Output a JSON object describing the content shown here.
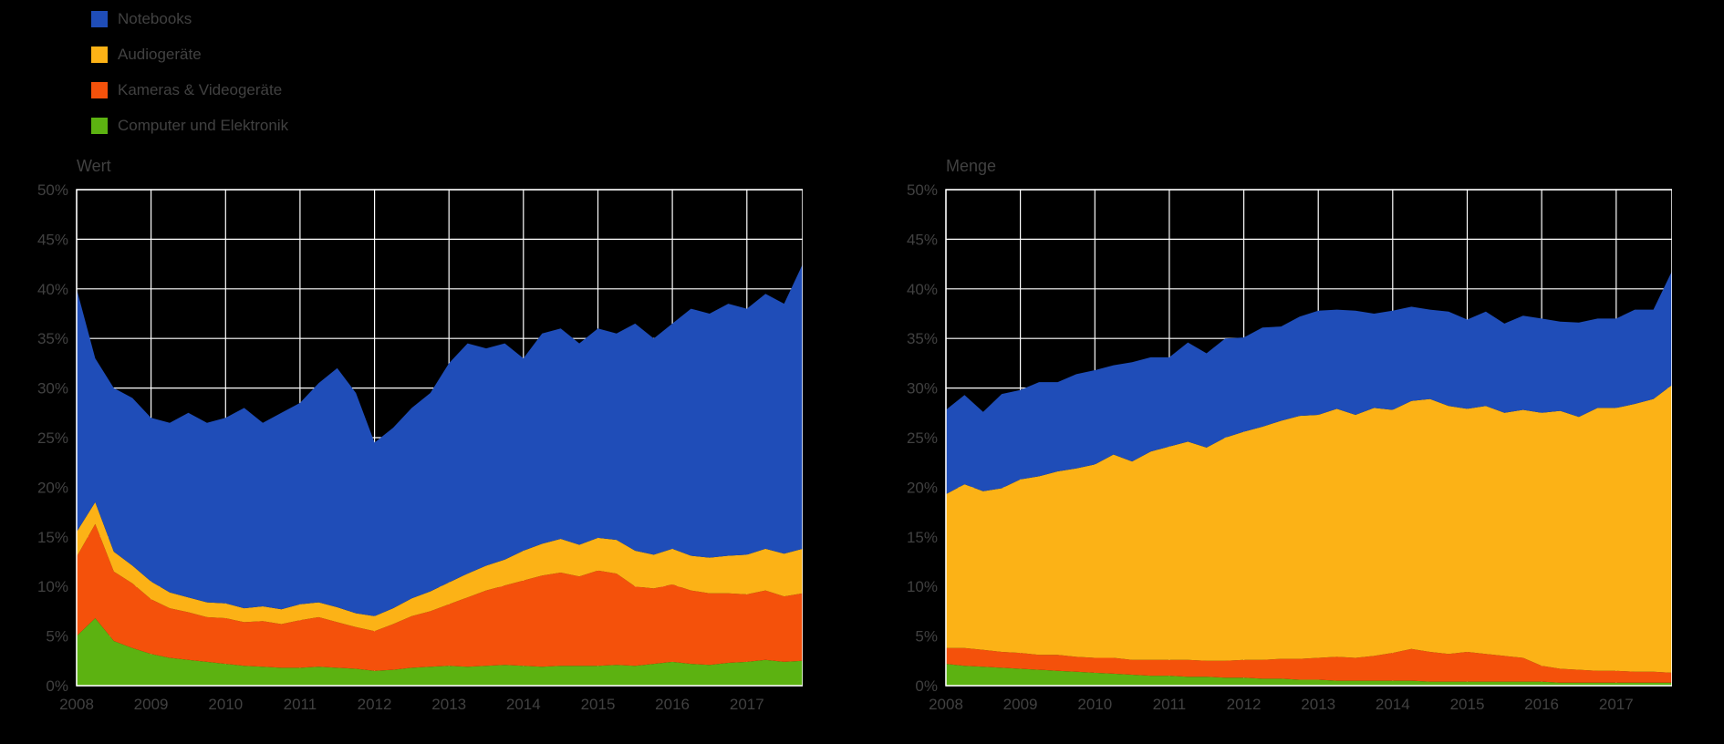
{
  "page": {
    "background_color": "#000000",
    "grid_color": "#ffffff",
    "text_color": "#414141"
  },
  "legend": {
    "items": [
      {
        "label": "Notebooks",
        "color": "#1f4db8"
      },
      {
        "label": "Audiogeräte",
        "color": "#fcb216"
      },
      {
        "label": "Kameras & Videogeräte",
        "color": "#f4510b"
      },
      {
        "label": "Computer und Elektronik",
        "color": "#5cb211"
      }
    ]
  },
  "chart_data": [
    {
      "type": "area",
      "stacked": true,
      "title": "Wert",
      "xlabel": "",
      "ylabel": "",
      "ylim": [
        0,
        50
      ],
      "grid": true,
      "grid_color": "#ffffff",
      "text_color": "#414141",
      "legend_position": "top-left",
      "y_tick_values": [
        0,
        5,
        10,
        15,
        20,
        25,
        30,
        35,
        40,
        45,
        50
      ],
      "y_tick_labels": [
        "0%",
        "5%",
        "10%",
        "15%",
        "20%",
        "25%",
        "30%",
        "35%",
        "40%",
        "45%",
        "50%"
      ],
      "x_tick_values": [
        2008,
        2009,
        2010,
        2011,
        2012,
        2013,
        2014,
        2015,
        2016,
        2017
      ],
      "x_tick_labels": [
        "2008",
        "2009",
        "2010",
        "2011",
        "2012",
        "2013",
        "2014",
        "2015",
        "2016",
        "2017"
      ],
      "x": [
        2008,
        2008.25,
        2008.5,
        2008.75,
        2009,
        2009.25,
        2009.5,
        2009.75,
        2010,
        2010.25,
        2010.5,
        2010.75,
        2011,
        2011.25,
        2011.5,
        2011.75,
        2012,
        2012.25,
        2012.5,
        2012.75,
        2013,
        2013.25,
        2013.5,
        2013.75,
        2014,
        2014.25,
        2014.5,
        2014.75,
        2015,
        2015.25,
        2015.5,
        2015.75,
        2016,
        2016.25,
        2016.5,
        2016.75,
        2017,
        2017.25,
        2017.5,
        2017.75
      ],
      "series": [
        {
          "name": "Computer und Elektronik",
          "color": "#5cb211",
          "values": [
            5.0,
            6.8,
            4.5,
            3.8,
            3.2,
            2.8,
            2.6,
            2.4,
            2.2,
            2.0,
            1.9,
            1.8,
            1.8,
            1.9,
            1.8,
            1.7,
            1.5,
            1.6,
            1.8,
            1.9,
            2.0,
            1.9,
            2.0,
            2.1,
            2.0,
            1.9,
            2.0,
            2.0,
            2.0,
            2.1,
            2.0,
            2.2,
            2.4,
            2.2,
            2.1,
            2.3,
            2.4,
            2.6,
            2.4,
            2.5
          ]
        },
        {
          "name": "Kameras & Videogeräte",
          "color": "#f4510b",
          "values": [
            8.0,
            9.5,
            7.0,
            6.5,
            5.5,
            5.0,
            4.8,
            4.5,
            4.6,
            4.4,
            4.6,
            4.4,
            4.8,
            5.0,
            4.6,
            4.2,
            4.0,
            4.6,
            5.2,
            5.6,
            6.2,
            7.0,
            7.6,
            8.0,
            8.6,
            9.2,
            9.4,
            9.0,
            9.6,
            9.2,
            8.0,
            7.6,
            7.8,
            7.4,
            7.2,
            7.0,
            6.8,
            7.0,
            6.6,
            6.8
          ]
        },
        {
          "name": "Audiogeräte",
          "color": "#fcb216",
          "values": [
            2.5,
            2.2,
            2.0,
            1.8,
            1.8,
            1.6,
            1.5,
            1.5,
            1.5,
            1.4,
            1.5,
            1.5,
            1.6,
            1.5,
            1.5,
            1.4,
            1.5,
            1.6,
            1.8,
            2.0,
            2.2,
            2.4,
            2.5,
            2.6,
            3.0,
            3.2,
            3.4,
            3.2,
            3.3,
            3.4,
            3.6,
            3.4,
            3.6,
            3.5,
            3.6,
            3.8,
            4.0,
            4.2,
            4.3,
            4.5
          ]
        },
        {
          "name": "Notebooks",
          "color": "#1f4db8",
          "values": [
            24.5,
            14.5,
            16.5,
            16.9,
            16.5,
            17.1,
            18.6,
            18.1,
            18.7,
            20.2,
            18.5,
            19.8,
            20.3,
            22.1,
            24.1,
            22.2,
            17.5,
            18.2,
            19.2,
            20.0,
            22.1,
            23.2,
            21.9,
            21.8,
            19.4,
            21.2,
            21.2,
            20.3,
            21.1,
            20.8,
            22.9,
            21.8,
            22.7,
            24.9,
            24.6,
            25.4,
            24.8,
            25.7,
            25.2,
            28.7
          ]
        }
      ]
    },
    {
      "type": "area",
      "stacked": true,
      "title": "Menge",
      "xlabel": "",
      "ylabel": "",
      "ylim": [
        0,
        50
      ],
      "grid": true,
      "grid_color": "#ffffff",
      "text_color": "#414141",
      "legend_position": "top-left",
      "y_tick_values": [
        0,
        5,
        10,
        15,
        20,
        25,
        30,
        35,
        40,
        45,
        50
      ],
      "y_tick_labels": [
        "0%",
        "5%",
        "10%",
        "15%",
        "20%",
        "25%",
        "30%",
        "35%",
        "40%",
        "45%",
        "50%"
      ],
      "x_tick_values": [
        2008,
        2009,
        2010,
        2011,
        2012,
        2013,
        2014,
        2015,
        2016,
        2017
      ],
      "x_tick_labels": [
        "2008",
        "2009",
        "2010",
        "2011",
        "2012",
        "2013",
        "2014",
        "2015",
        "2016",
        "2017"
      ],
      "x": [
        2008,
        2008.25,
        2008.5,
        2008.75,
        2009,
        2009.25,
        2009.5,
        2009.75,
        2010,
        2010.25,
        2010.5,
        2010.75,
        2011,
        2011.25,
        2011.5,
        2011.75,
        2012,
        2012.25,
        2012.5,
        2012.75,
        2013,
        2013.25,
        2013.5,
        2013.75,
        2014,
        2014.25,
        2014.5,
        2014.75,
        2015,
        2015.25,
        2015.5,
        2015.75,
        2016,
        2016.25,
        2016.5,
        2016.75,
        2017,
        2017.25,
        2017.5,
        2017.75
      ],
      "series": [
        {
          "name": "Computer und Elektronik",
          "color": "#5cb211",
          "values": [
            2.2,
            2.0,
            1.9,
            1.8,
            1.7,
            1.6,
            1.5,
            1.4,
            1.3,
            1.2,
            1.1,
            1.0,
            1.0,
            0.9,
            0.9,
            0.8,
            0.8,
            0.7,
            0.7,
            0.6,
            0.6,
            0.5,
            0.5,
            0.5,
            0.5,
            0.5,
            0.4,
            0.4,
            0.4,
            0.4,
            0.4,
            0.4,
            0.4,
            0.3,
            0.3,
            0.3,
            0.3,
            0.3,
            0.3,
            0.3
          ]
        },
        {
          "name": "Kameras & Videogeräte",
          "color": "#f4510b",
          "values": [
            1.6,
            1.8,
            1.7,
            1.6,
            1.6,
            1.5,
            1.6,
            1.5,
            1.5,
            1.6,
            1.5,
            1.6,
            1.6,
            1.7,
            1.6,
            1.7,
            1.8,
            1.9,
            2.0,
            2.1,
            2.2,
            2.4,
            2.3,
            2.5,
            2.8,
            3.2,
            3.0,
            2.8,
            3.0,
            2.8,
            2.6,
            2.4,
            1.6,
            1.4,
            1.3,
            1.2,
            1.2,
            1.1,
            1.1,
            1.0
          ]
        },
        {
          "name": "Audiogeräte",
          "color": "#fcb216",
          "values": [
            15.5,
            16.5,
            16.0,
            16.5,
            17.5,
            18.0,
            18.5,
            19.0,
            19.5,
            20.5,
            20.0,
            21.0,
            21.5,
            22.0,
            21.5,
            22.5,
            23.0,
            23.5,
            24.0,
            24.5,
            24.5,
            25.0,
            24.5,
            25.0,
            24.5,
            25.0,
            25.5,
            25.0,
            24.5,
            25.0,
            24.5,
            25.0,
            25.5,
            26.0,
            25.5,
            26.5,
            26.5,
            27.0,
            27.5,
            29.0
          ]
        },
        {
          "name": "Notebooks",
          "color": "#1f4db8",
          "values": [
            8.5,
            9.0,
            8.0,
            9.5,
            9.0,
            9.5,
            9.0,
            9.5,
            9.5,
            9.0,
            10.0,
            9.5,
            9.0,
            10.0,
            9.5,
            10.0,
            9.5,
            10.0,
            9.5,
            10.0,
            10.5,
            10.0,
            10.5,
            9.5,
            10.0,
            9.5,
            9.0,
            9.5,
            9.0,
            9.5,
            9.0,
            9.5,
            9.5,
            9.0,
            9.5,
            9.0,
            9.0,
            9.5,
            9.0,
            11.5
          ]
        }
      ]
    }
  ]
}
